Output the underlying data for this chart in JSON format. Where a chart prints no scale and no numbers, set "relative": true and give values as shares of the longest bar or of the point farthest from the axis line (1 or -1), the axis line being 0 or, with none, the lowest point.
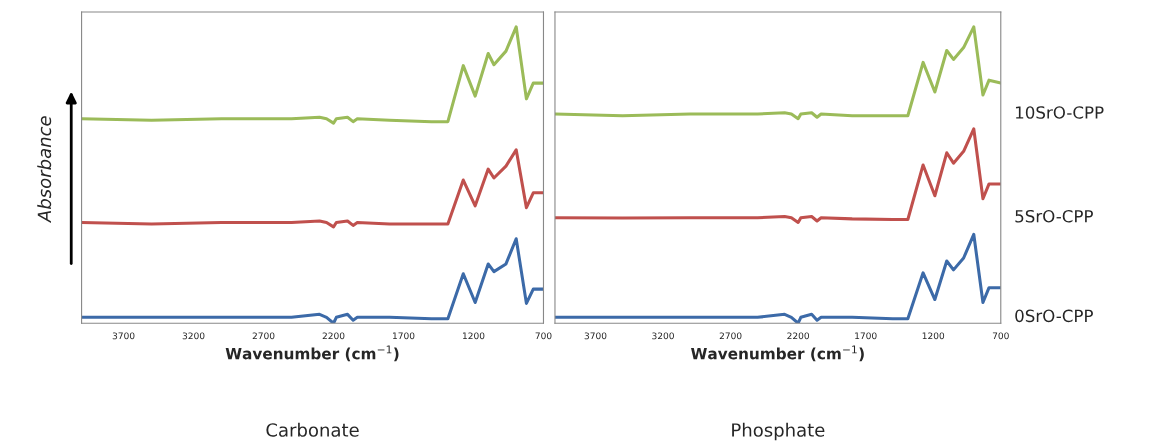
{
  "chart_data": [
    {
      "type": "line",
      "title": "Carbonate",
      "xlabel": "Wavenumber (cm$^{−1}$)",
      "ylabel": "Absorbance",
      "relative": true,
      "xlim": [
        4000,
        700
      ],
      "xticks": [
        3700,
        3200,
        2700,
        2200,
        1700,
        1200,
        700
      ],
      "grid": false,
      "legend": false,
      "x": [
        4000,
        3500,
        3000,
        2500,
        2300,
        2250,
        2200,
        2180,
        2100,
        2060,
        2030,
        1800,
        1500,
        1383,
        1273,
        1188,
        1095,
        1054,
        968,
        895,
        822,
        773,
        700
      ],
      "series": [
        {
          "color": "#3c6aa8",
          "values": [
            0.02,
            0.02,
            0.02,
            0.02,
            0.03,
            0.02,
            0.0,
            0.02,
            0.03,
            0.01,
            0.02,
            0.02,
            0.015,
            0.015,
            0.167,
            0.07,
            0.2,
            0.174,
            0.2,
            0.285,
            0.067,
            0.115,
            0.115
          ]
        },
        {
          "color": "#c0504d",
          "values": [
            0.34,
            0.335,
            0.34,
            0.34,
            0.345,
            0.34,
            0.325,
            0.34,
            0.345,
            0.33,
            0.34,
            0.335,
            0.335,
            0.335,
            0.483,
            0.396,
            0.52,
            0.49,
            0.53,
            0.585,
            0.39,
            0.44,
            0.44
          ]
        },
        {
          "color": "#9bbb59",
          "values": [
            0.69,
            0.685,
            0.69,
            0.69,
            0.695,
            0.69,
            0.675,
            0.69,
            0.695,
            0.68,
            0.69,
            0.685,
            0.68,
            0.68,
            0.869,
            0.766,
            0.91,
            0.872,
            0.918,
            1,
            0.757,
            0.81,
            0.81
          ]
        }
      ]
    },
    {
      "type": "line",
      "title": "Phosphate",
      "xlabel": "Wavenumber (cm$^{−1}$)",
      "relative": true,
      "xlim": [
        4000,
        700
      ],
      "xticks": [
        3700,
        3200,
        2700,
        2200,
        1700,
        1200,
        700
      ],
      "grid": false,
      "legend": false,
      "x": [
        4000,
        3500,
        3000,
        2500,
        2300,
        2250,
        2200,
        2180,
        2100,
        2060,
        2030,
        1800,
        1500,
        1388,
        1275,
        1188,
        1100,
        1050,
        975,
        900,
        832,
        787,
        700
      ],
      "series": [
        {
          "name": "0SrO-CPP",
          "color": "#3c6aa8",
          "values": [
            0.02,
            0.02,
            0.02,
            0.02,
            0.03,
            0.02,
            0.0,
            0.02,
            0.03,
            0.01,
            0.02,
            0.02,
            0.015,
            0.015,
            0.17,
            0.08,
            0.21,
            0.18,
            0.22,
            0.3,
            0.07,
            0.12,
            0.12
          ]
        },
        {
          "name": "5SrO-CPP",
          "color": "#c0504d",
          "values": [
            0.356,
            0.355,
            0.356,
            0.356,
            0.36,
            0.356,
            0.34,
            0.356,
            0.36,
            0.345,
            0.356,
            0.352,
            0.35,
            0.35,
            0.534,
            0.43,
            0.575,
            0.54,
            0.58,
            0.656,
            0.42,
            0.47,
            0.47
          ]
        },
        {
          "name": "10SrO-CPP",
          "color": "#9bbb59",
          "values": [
            0.706,
            0.7,
            0.706,
            0.706,
            0.71,
            0.706,
            0.69,
            0.706,
            0.71,
            0.695,
            0.706,
            0.7,
            0.7,
            0.7,
            0.88,
            0.78,
            0.92,
            0.89,
            0.93,
            1,
            0.77,
            0.82,
            0.81
          ]
        }
      ]
    }
  ]
}
